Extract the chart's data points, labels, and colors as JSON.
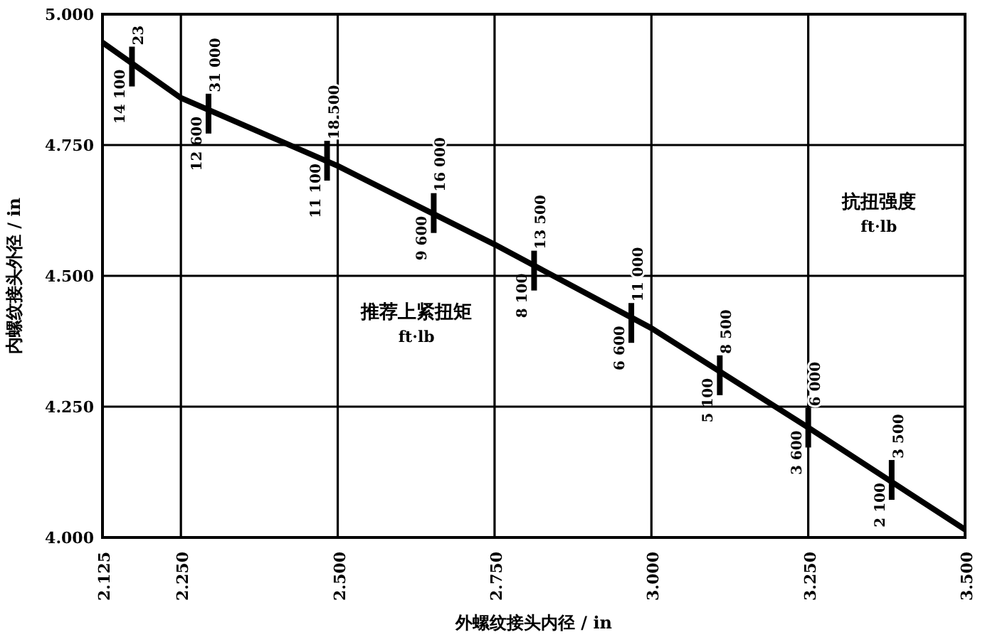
{
  "chart_data": {
    "type": "line",
    "xlabel": "外螺纹接头内径 / in",
    "ylabel": "内螺纹接头外径 / in",
    "xlim": [
      2.125,
      3.5
    ],
    "ylim": [
      4.0,
      5.0
    ],
    "xticks": [
      {
        "value": 2.125,
        "label": "2.125"
      },
      {
        "value": 2.25,
        "label": "2.250"
      },
      {
        "value": 2.5,
        "label": "2.500"
      },
      {
        "value": 2.75,
        "label": "2.750"
      },
      {
        "value": 3.0,
        "label": "3.000"
      },
      {
        "value": 3.25,
        "label": "3.250"
      },
      {
        "value": 3.5,
        "label": "3.500"
      }
    ],
    "yticks": [
      {
        "value": 4.0,
        "label": "4.000"
      },
      {
        "value": 4.25,
        "label": "4.250"
      },
      {
        "value": 4.5,
        "label": "4.500"
      },
      {
        "value": 4.75,
        "label": "4.750"
      },
      {
        "value": 5.0,
        "label": "5.000"
      }
    ],
    "grid": true,
    "marker": "none",
    "line_style": "solid",
    "series": [
      {
        "color": "#000000",
        "x": [
          2.125,
          2.25,
          2.5,
          2.75,
          3.0,
          3.25,
          3.5
        ],
        "values": [
          4.946,
          4.84,
          4.71,
          4.56,
          4.4,
          4.21,
          4.015
        ]
      }
    ],
    "annotations": [
      "推荐上紧扭矩\nft·lb",
      "抗扭强度\nft·lb",
      {
        "text": "14 100",
        "x": 2.172,
        "y": 4.9
      },
      {
        "text": "23",
        "x": 2.172,
        "y": 4.9
      },
      {
        "text": "12 600",
        "x": 2.294,
        "y": 4.81
      },
      {
        "text": "31 000",
        "x": 2.294,
        "y": 4.81
      },
      {
        "text": "11 100",
        "x": 2.483,
        "y": 4.72
      },
      {
        "text": "18 500",
        "x": 2.483,
        "y": 4.72
      },
      {
        "text": "9 600",
        "x": 2.653,
        "y": 4.62
      },
      {
        "text": "16 000",
        "x": 2.653,
        "y": 4.62
      },
      {
        "text": "8 100",
        "x": 2.813,
        "y": 4.51
      },
      {
        "text": "13 500",
        "x": 2.813,
        "y": 4.51
      },
      {
        "text": "6 600",
        "x": 2.968,
        "y": 4.41
      },
      {
        "text": "11 000",
        "x": 2.968,
        "y": 4.41
      },
      {
        "text": "5 100",
        "x": 3.109,
        "y": 4.31
      },
      {
        "text": "8 500",
        "x": 3.109,
        "y": 4.31
      },
      {
        "text": "3 600",
        "x": 3.25,
        "y": 4.21
      },
      {
        "text": "6 000",
        "x": 3.25,
        "y": 4.21
      },
      {
        "text": "2 100",
        "x": 3.383,
        "y": 4.11
      },
      {
        "text": "3 500",
        "x": 3.383,
        "y": 4.11
      }
    ]
  }
}
